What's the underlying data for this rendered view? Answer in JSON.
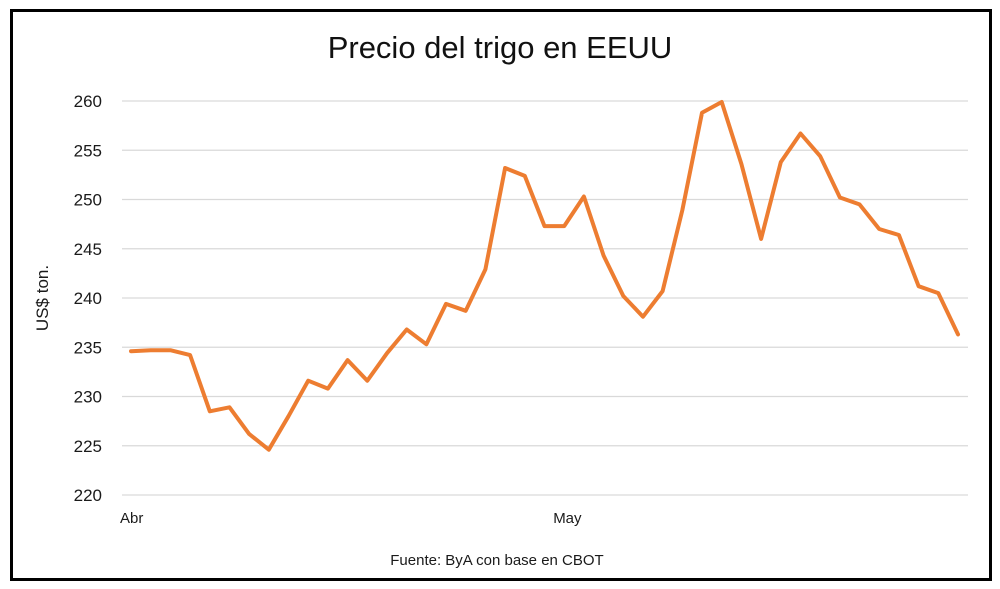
{
  "chart_data": {
    "type": "line",
    "title": "Precio del trigo en EEUU",
    "ylabel": "US$ ton.",
    "xlabel": "",
    "source_note": "Fuente: ByA con base en CBOT",
    "ylim": [
      220,
      260
    ],
    "yticks": [
      220,
      225,
      230,
      235,
      240,
      245,
      250,
      255,
      260
    ],
    "x_tick_labels": [
      {
        "label": "Abr",
        "index": 0
      },
      {
        "label": "May",
        "index": 22
      }
    ],
    "grid": true,
    "legend": "none",
    "line_color": "#ED7D31",
    "series": [
      {
        "values": [
          234.6,
          234.7,
          234.7,
          234.2,
          228.5,
          228.9,
          226.2,
          224.6,
          228.0,
          231.6,
          230.8,
          233.7,
          231.6,
          234.4,
          236.8,
          235.3,
          239.4,
          238.7,
          242.9,
          253.2,
          252.4,
          247.3,
          247.3,
          250.3,
          244.3,
          240.2,
          238.1,
          240.7,
          248.9,
          258.8,
          259.9,
          253.6,
          246.0,
          253.8,
          256.7,
          254.4,
          250.2,
          249.5,
          247.0,
          246.4,
          241.2,
          240.5,
          236.3
        ]
      }
    ]
  }
}
